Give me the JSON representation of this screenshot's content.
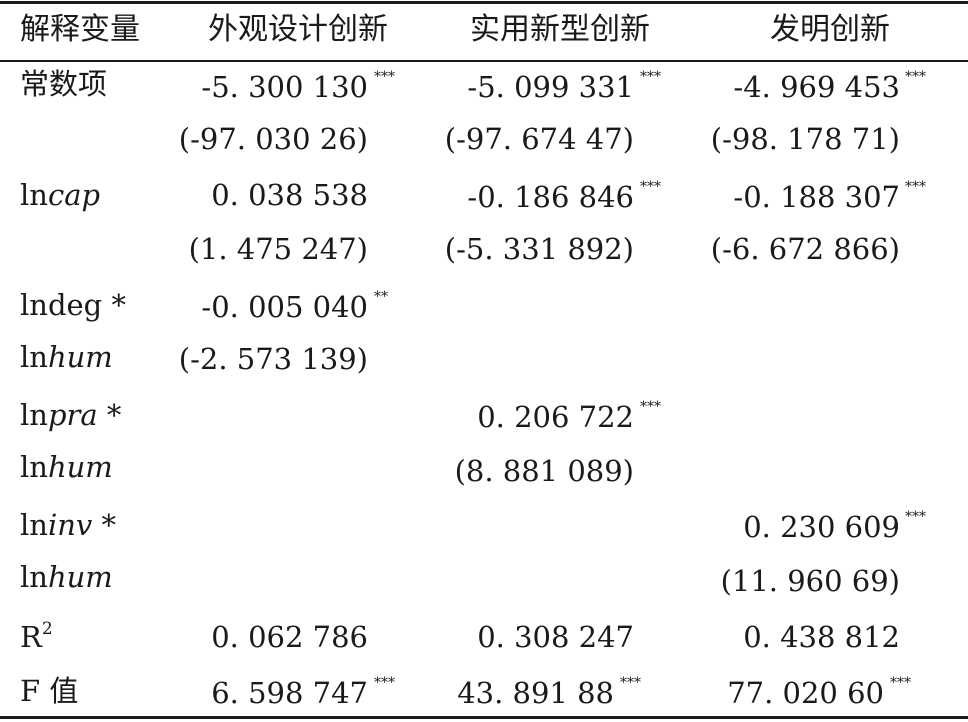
{
  "header": {
    "var": "解释变量",
    "col1": "外观设计创新",
    "col2": "实用新型创新",
    "col3": "发明创新"
  },
  "rows": {
    "const": {
      "label": "常数项",
      "c1": "-5. 300 130",
      "c1_sig": "***",
      "c2": "-5. 099 331",
      "c2_sig": "***",
      "c3": "-4. 969 453",
      "c3_sig": "***",
      "t1": "(-97. 030 26)",
      "t2": "(-97. 674 47)",
      "t3": "(-98. 178 71)"
    },
    "lncap": {
      "label_prefix": "ln",
      "label_italic": "cap",
      "c1": "0. 038 538",
      "c2": "-0. 186 846",
      "c2_sig": "***",
      "c3": "-0. 188 307",
      "c3_sig": "***",
      "t1": "(1. 475 247)",
      "t2": "(-5. 331 892)",
      "t3": "(-6. 672 866)"
    },
    "lndeg": {
      "label_a": "lndeg *",
      "label_b_prefix": "ln",
      "label_b_italic": "hum",
      "c1": "-0. 005 040",
      "c1_sig": "**",
      "t1": "(-2. 573 139)"
    },
    "lnpra": {
      "label_a_prefix": "ln",
      "label_a_italic": "pra",
      "label_a_suffix": " *",
      "label_b_prefix": "ln",
      "label_b_italic": "hum",
      "c2": "0. 206 722",
      "c2_sig": "***",
      "t2": "(8. 881 089)"
    },
    "lninv": {
      "label_a_prefix": "ln",
      "label_a_italic": "inv",
      "label_a_suffix": " *",
      "label_b_prefix": "ln",
      "label_b_italic": "hum",
      "c3": "0. 230 609",
      "c3_sig": "***",
      "t3": "(11. 960 69)"
    },
    "r2": {
      "label": "R",
      "label_sup": "2",
      "c1": "0. 062 786",
      "c2": "0. 308 247",
      "c3": "0. 438 812"
    },
    "f": {
      "label": "F 值",
      "c1": "6. 598 747",
      "c1_sig": "***",
      "c2": "43. 891 88",
      "c2_sig": "***",
      "c3": "77. 020 60",
      "c3_sig": "***"
    }
  }
}
